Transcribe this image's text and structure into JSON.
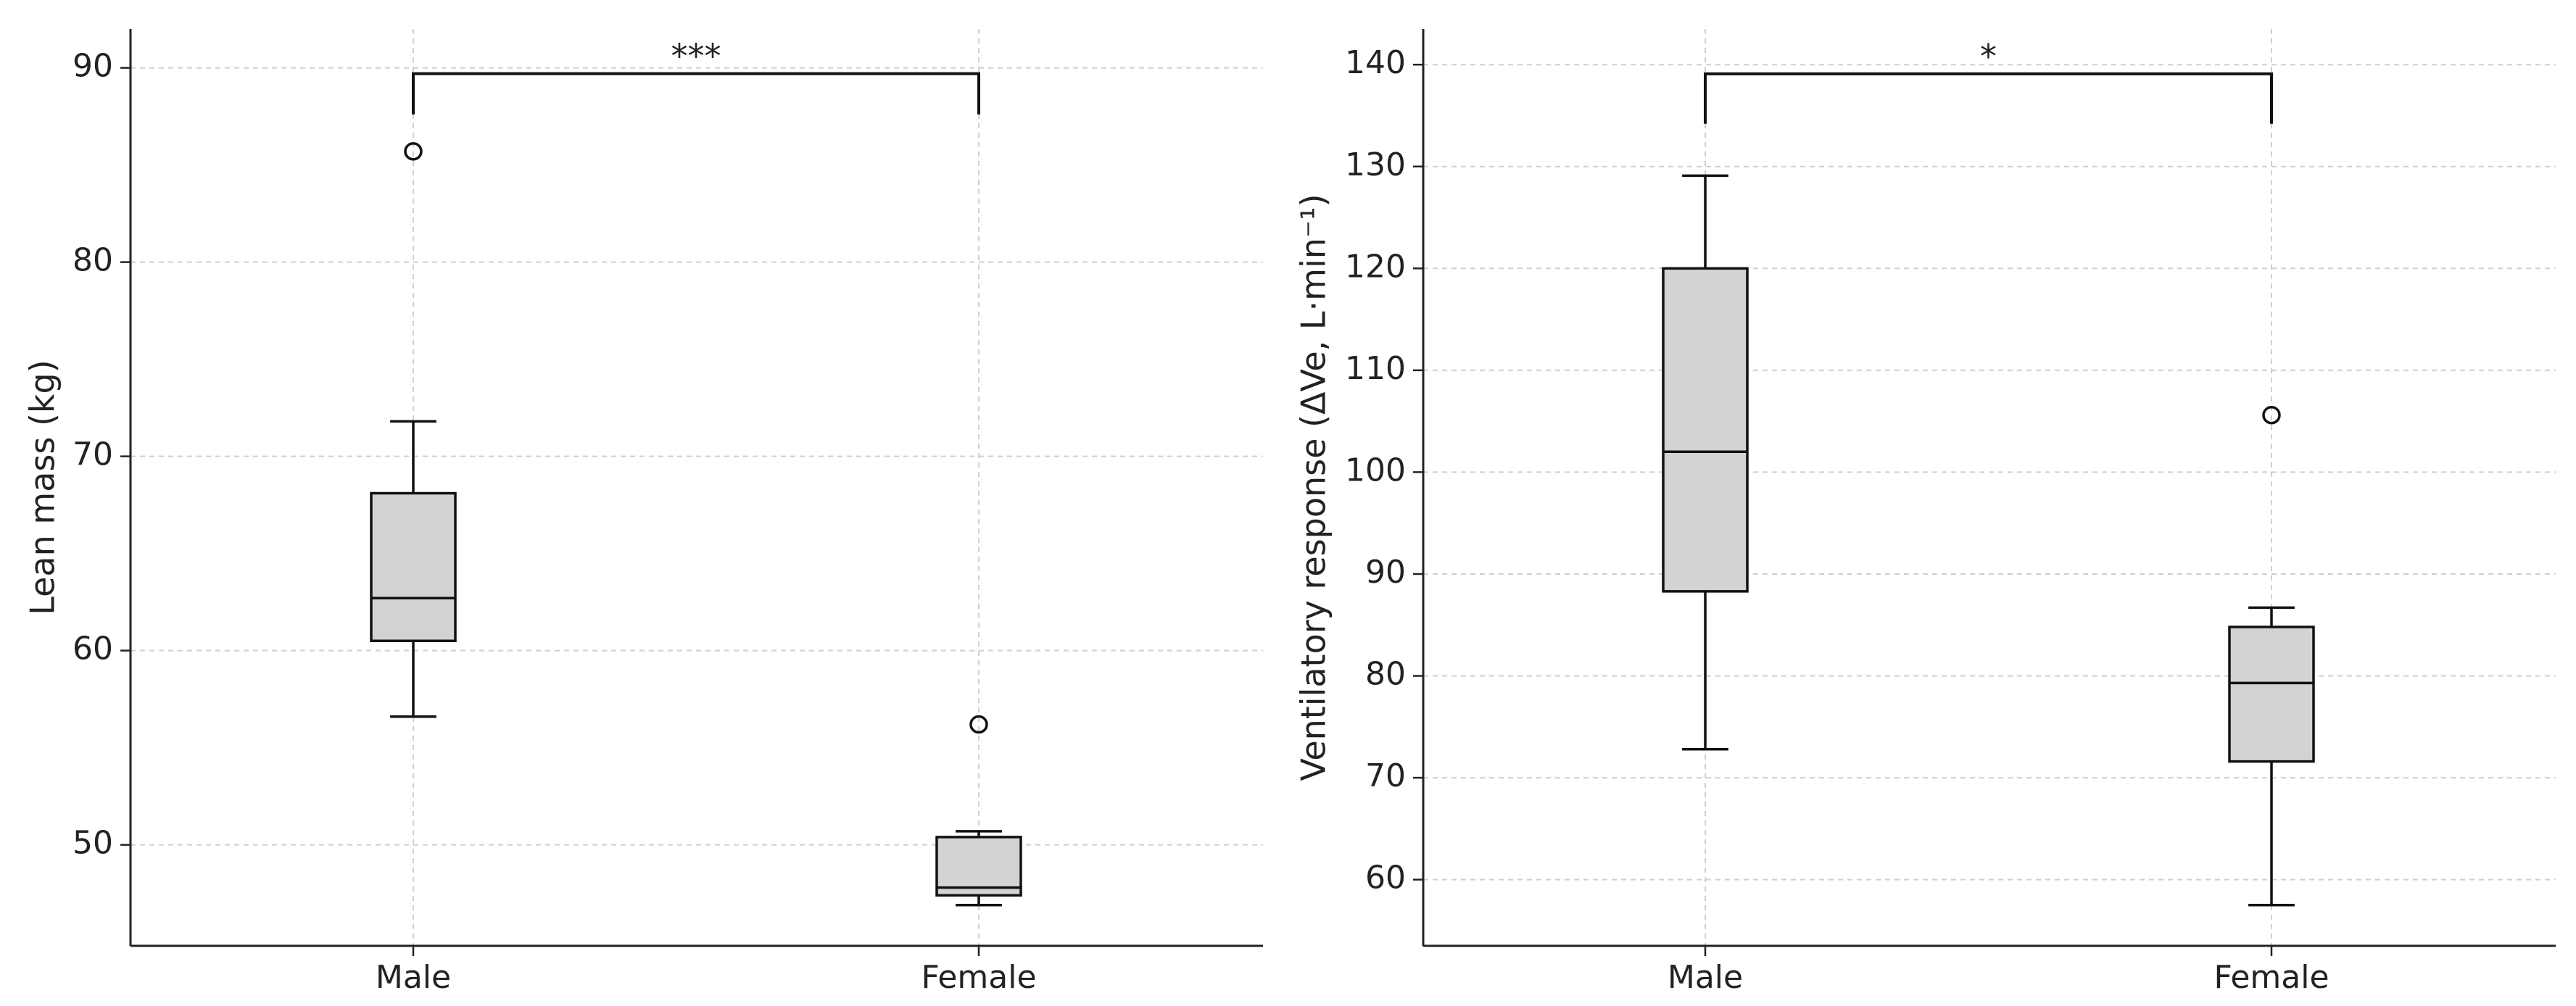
{
  "chart_data": [
    {
      "type": "box",
      "title": "",
      "xlabel": "",
      "ylabel": "Lean mass (kg)",
      "ylim": [
        44.8,
        92
      ],
      "yticks": [
        50,
        60,
        70,
        80,
        90
      ],
      "categories": [
        "Male",
        "Female"
      ],
      "grid": true,
      "boxes": [
        {
          "category": "Male",
          "whisker_low": 56.6,
          "q1": 60.5,
          "median": 62.7,
          "q3": 68.1,
          "whisker_high": 71.8,
          "outliers": [
            85.7
          ]
        },
        {
          "category": "Female",
          "whisker_low": 46.9,
          "q1": 47.4,
          "median": 47.8,
          "q3": 50.4,
          "whisker_high": 50.7,
          "outliers": [
            56.2
          ]
        }
      ],
      "significance": {
        "label": "***",
        "between": [
          "Male",
          "Female"
        ],
        "y": 89.7,
        "leg_bottom": 87.6
      }
    },
    {
      "type": "box",
      "title": "",
      "xlabel": "",
      "ylabel": "Ventilatory response (ΔVe, L·min⁻¹)",
      "ylim": [
        53.5,
        143.5
      ],
      "yticks": [
        60,
        70,
        80,
        90,
        100,
        110,
        120,
        130,
        140
      ],
      "categories": [
        "Male",
        "Female"
      ],
      "grid": true,
      "boxes": [
        {
          "category": "Male",
          "whisker_low": 72.8,
          "q1": 88.3,
          "median": 102,
          "q3": 120,
          "whisker_high": 129.1,
          "outliers": []
        },
        {
          "category": "Female",
          "whisker_low": 57.5,
          "q1": 71.6,
          "median": 79.3,
          "q3": 84.8,
          "whisker_high": 86.7,
          "outliers": [
            105.6
          ]
        }
      ],
      "significance": {
        "label": "*",
        "between": [
          "Male",
          "Female"
        ],
        "y": 139.1,
        "leg_bottom": 134.2
      }
    }
  ]
}
